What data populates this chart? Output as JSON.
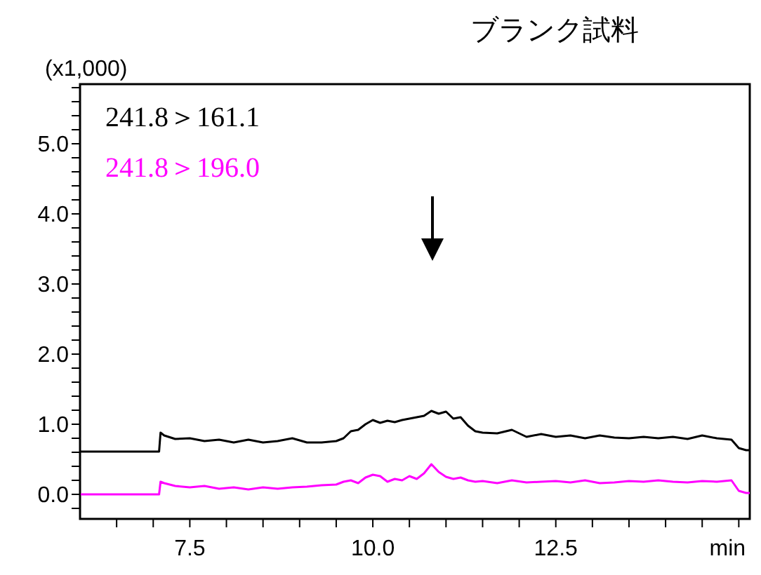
{
  "chart_data": {
    "type": "line",
    "title": "ブランク試料",
    "ylabel": "(x1,000)",
    "x": [
      6.0,
      7.08,
      7.1,
      7.15,
      7.3,
      7.5,
      7.7,
      7.9,
      8.1,
      8.3,
      8.5,
      8.7,
      8.9,
      9.1,
      9.3,
      9.5,
      9.6,
      9.7,
      9.8,
      9.9,
      10.0,
      10.1,
      10.2,
      10.3,
      10.4,
      10.5,
      10.6,
      10.7,
      10.8,
      10.9,
      11.0,
      11.1,
      11.2,
      11.3,
      11.4,
      11.5,
      11.7,
      11.9,
      12.1,
      12.3,
      12.5,
      12.7,
      12.9,
      13.1,
      13.3,
      13.5,
      13.7,
      13.9,
      14.1,
      14.3,
      14.5,
      14.7,
      14.9,
      15.0,
      15.1,
      15.15
    ],
    "series": [
      {
        "name": "241.8＞161.1",
        "color": "#000000",
        "values": [
          0.61,
          0.61,
          0.88,
          0.84,
          0.79,
          0.8,
          0.76,
          0.78,
          0.74,
          0.78,
          0.74,
          0.76,
          0.8,
          0.74,
          0.74,
          0.76,
          0.8,
          0.9,
          0.92,
          1.0,
          1.06,
          1.02,
          1.05,
          1.03,
          1.06,
          1.08,
          1.1,
          1.12,
          1.19,
          1.15,
          1.18,
          1.08,
          1.1,
          0.98,
          0.9,
          0.88,
          0.87,
          0.92,
          0.82,
          0.86,
          0.82,
          0.84,
          0.8,
          0.84,
          0.81,
          0.8,
          0.82,
          0.8,
          0.82,
          0.79,
          0.84,
          0.8,
          0.78,
          0.66,
          0.63,
          0.63
        ]
      },
      {
        "name": "241.8＞196.0",
        "color": "#ff00ff",
        "values": [
          0.0,
          0.0,
          0.18,
          0.16,
          0.12,
          0.1,
          0.12,
          0.08,
          0.1,
          0.07,
          0.1,
          0.08,
          0.1,
          0.11,
          0.13,
          0.14,
          0.18,
          0.2,
          0.16,
          0.24,
          0.28,
          0.26,
          0.18,
          0.22,
          0.2,
          0.26,
          0.22,
          0.3,
          0.43,
          0.32,
          0.25,
          0.22,
          0.24,
          0.2,
          0.18,
          0.19,
          0.16,
          0.2,
          0.17,
          0.18,
          0.19,
          0.17,
          0.2,
          0.16,
          0.17,
          0.19,
          0.18,
          0.2,
          0.18,
          0.17,
          0.19,
          0.18,
          0.2,
          0.05,
          0.02,
          0.02
        ]
      }
    ],
    "xlim": [
      6.0,
      15.15
    ],
    "xticks": [
      {
        "value": 6.5,
        "label": null
      },
      {
        "value": 7,
        "label": null
      },
      7.5,
      {
        "value": 8,
        "label": null
      },
      {
        "value": 8.5,
        "label": null
      },
      {
        "value": 9,
        "label": null
      },
      {
        "value": 9.5,
        "label": null
      },
      {
        "value": 10,
        "label": "10.0"
      },
      {
        "value": 10.5,
        "label": null
      },
      {
        "value": 11,
        "label": null
      },
      {
        "value": 11.5,
        "label": null
      },
      {
        "value": 12,
        "label": null
      },
      12.5,
      {
        "value": 13,
        "label": null
      },
      {
        "value": 13.5,
        "label": null
      },
      {
        "value": 14,
        "label": null
      },
      {
        "value": 14.5,
        "label": null
      },
      {
        "value": 15,
        "label": "min"
      }
    ],
    "ylim": [
      -0.35,
      5.85
    ],
    "yticks": [
      {
        "value": -0.2,
        "label": null
      },
      {
        "value": 0,
        "label": "0.0"
      },
      {
        "value": 0.2,
        "label": null
      },
      {
        "value": 0.4,
        "label": null
      },
      {
        "value": 0.6,
        "label": null
      },
      {
        "value": 0.8,
        "label": null
      },
      {
        "value": 1,
        "label": "1.0"
      },
      {
        "value": 1.2,
        "label": null
      },
      {
        "value": 1.4,
        "label": null
      },
      {
        "value": 1.6,
        "label": null
      },
      {
        "value": 1.8,
        "label": null
      },
      {
        "value": 2,
        "label": "2.0"
      },
      {
        "value": 2.2,
        "label": null
      },
      {
        "value": 2.4,
        "label": null
      },
      {
        "value": 2.6,
        "label": null
      },
      {
        "value": 2.8,
        "label": null
      },
      {
        "value": 3,
        "label": "3.0"
      },
      {
        "value": 3.2,
        "label": null
      },
      {
        "value": 3.4,
        "label": null
      },
      {
        "value": 3.6,
        "label": null
      },
      {
        "value": 3.8,
        "label": null
      },
      {
        "value": 4,
        "label": "4.0"
      },
      {
        "value": 4.2,
        "label": null
      },
      {
        "value": 4.4,
        "label": null
      },
      {
        "value": 4.6,
        "label": null
      },
      {
        "value": 4.8,
        "label": null
      },
      {
        "value": 5,
        "label": "5.0"
      },
      {
        "value": 5.2,
        "label": null
      },
      {
        "value": 5.4,
        "label": null
      },
      {
        "value": 5.6,
        "label": null
      },
      {
        "value": 5.8,
        "label": null
      }
    ],
    "legend": "top left",
    "grid": false
  }
}
